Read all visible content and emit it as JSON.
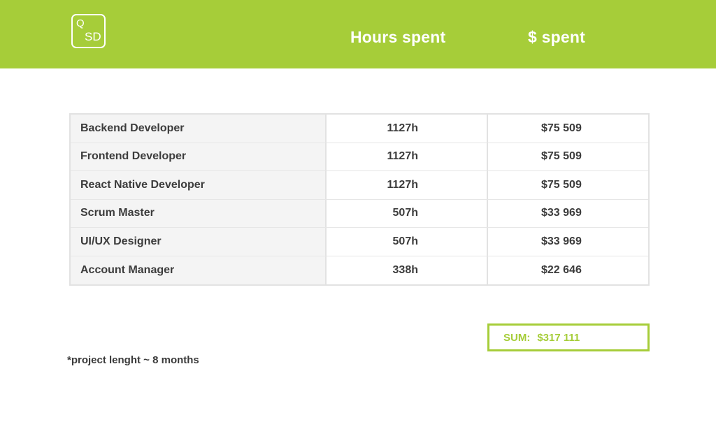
{
  "header": {
    "logo_q": "Q",
    "logo_sd": "SD",
    "hours_heading": "Hours spent",
    "cost_heading": "$ spent",
    "background_color": "#a6cd39"
  },
  "table": {
    "rows": [
      {
        "role": "Backend Developer",
        "hours": "1127h",
        "cost": "$75 509"
      },
      {
        "role": "Frontend Developer",
        "hours": "1127h",
        "cost": "$75 509"
      },
      {
        "role": "React Native Developer",
        "hours": "1127h",
        "cost": "$75 509"
      },
      {
        "role": "Scrum Master",
        "hours": "507h",
        "cost": "$33 969"
      },
      {
        "role": "UI/UX Designer",
        "hours": "507h",
        "cost": "$33 969"
      },
      {
        "role": "Account Manager",
        "hours": "338h",
        "cost": "$22 646"
      }
    ]
  },
  "summary": {
    "label": "SUM:",
    "value": "$317 111",
    "accent_color": "#a6cd39"
  },
  "footnote": "*project lenght ~ 8 months"
}
